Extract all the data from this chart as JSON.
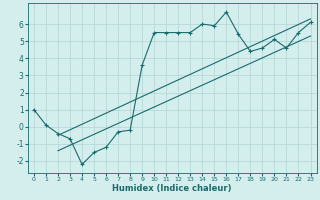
{
  "xlabel": "Humidex (Indice chaleur)",
  "bg_color": "#d4eeee",
  "line_color": "#1a6b6b",
  "grid_color": "#b8d8d8",
  "xlim": [
    -0.5,
    23.5
  ],
  "ylim": [
    -2.7,
    7.2
  ],
  "xticks": [
    0,
    1,
    2,
    3,
    4,
    5,
    6,
    7,
    8,
    9,
    10,
    11,
    12,
    13,
    14,
    15,
    16,
    17,
    18,
    19,
    20,
    21,
    22,
    23
  ],
  "yticks": [
    -2,
    -1,
    0,
    1,
    2,
    3,
    4,
    5,
    6
  ],
  "series1_x": [
    0,
    1,
    2,
    3,
    4,
    5,
    6,
    7,
    8,
    9,
    10,
    11,
    12,
    13,
    14,
    15,
    16,
    17,
    18,
    19,
    20,
    21,
    22,
    23
  ],
  "series1_y": [
    1.0,
    0.1,
    -0.4,
    -0.7,
    -2.2,
    -1.5,
    -1.2,
    -0.3,
    -0.2,
    3.6,
    5.5,
    5.5,
    5.5,
    5.5,
    6.0,
    5.9,
    6.7,
    5.4,
    4.4,
    4.6,
    5.1,
    4.6,
    5.5,
    6.1
  ],
  "series2_x": [
    2,
    23
  ],
  "series2_y": [
    -0.5,
    6.3
  ],
  "series3_x": [
    2,
    23
  ],
  "series3_y": [
    -1.4,
    5.3
  ],
  "marker": "+"
}
